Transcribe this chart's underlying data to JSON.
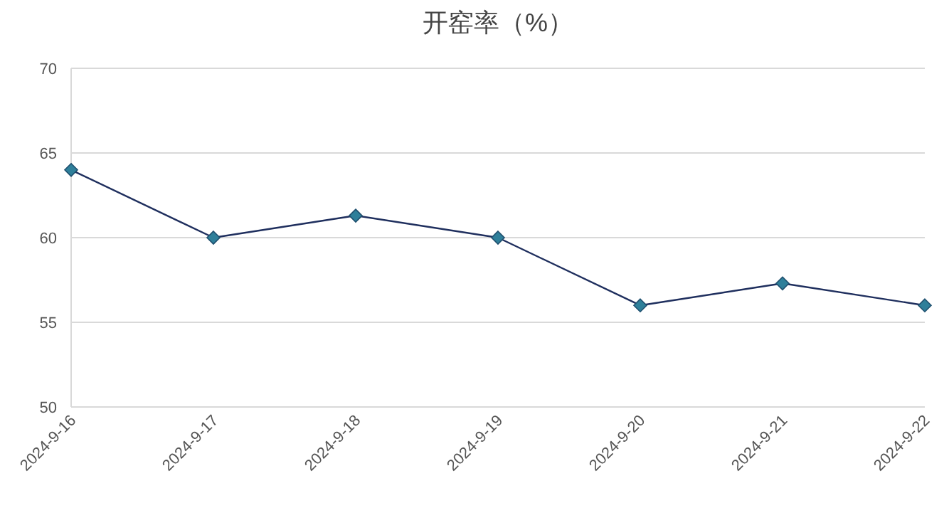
{
  "chart_data": {
    "type": "line",
    "title": "开窑率（%）",
    "categories": [
      "2024-9-16",
      "2024-9-17",
      "2024-9-18",
      "2024-9-19",
      "2024-9-20",
      "2024-9-21",
      "2024-9-22"
    ],
    "series": [
      {
        "color": "#2e7f9a",
        "values": [
          64,
          60,
          61.3,
          60,
          56,
          57.3,
          56
        ]
      }
    ],
    "ylim": [
      50,
      70
    ],
    "yticks": [
      50,
      55,
      60,
      65,
      70
    ],
    "grid": "y",
    "marker": "diamond",
    "line_style": "solid"
  }
}
